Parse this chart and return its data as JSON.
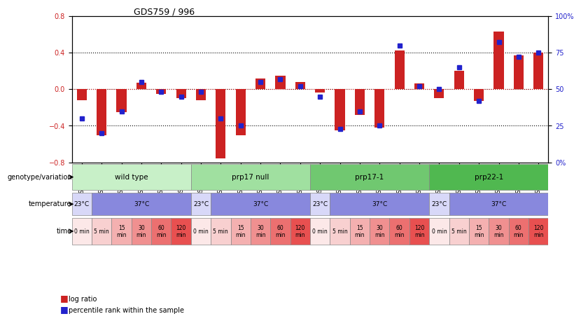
{
  "title": "GDS759 / 996",
  "samples": [
    "GSM30876",
    "GSM30877",
    "GSM30878",
    "GSM30879",
    "GSM30880",
    "GSM30881",
    "GSM30882",
    "GSM30883",
    "GSM30884",
    "GSM30885",
    "GSM30886",
    "GSM30887",
    "GSM30888",
    "GSM30889",
    "GSM30890",
    "GSM30891",
    "GSM30892",
    "GSM30893",
    "GSM30894",
    "GSM30895",
    "GSM30896",
    "GSM30897",
    "GSM30898",
    "GSM30899"
  ],
  "log_ratio": [
    -0.12,
    -0.5,
    -0.25,
    0.07,
    -0.05,
    -0.1,
    -0.12,
    -0.76,
    -0.5,
    0.12,
    0.15,
    0.08,
    -0.04,
    -0.45,
    -0.28,
    -0.42,
    0.42,
    0.06,
    -0.1,
    0.2,
    -0.13,
    0.63,
    0.37,
    0.4
  ],
  "percentile": [
    30,
    20,
    35,
    55,
    48,
    45,
    48,
    30,
    25,
    55,
    57,
    52,
    45,
    23,
    35,
    25,
    80,
    52,
    50,
    65,
    42,
    82,
    72,
    75
  ],
  "genotype_groups": [
    {
      "label": "wild type",
      "start": 0,
      "end": 6,
      "color": "#c8f0c8"
    },
    {
      "label": "prp17 null",
      "start": 6,
      "end": 12,
      "color": "#a0e0a0"
    },
    {
      "label": "prp17-1",
      "start": 12,
      "end": 18,
      "color": "#70c870"
    },
    {
      "label": "prp22-1",
      "start": 18,
      "end": 24,
      "color": "#50b850"
    }
  ],
  "temperature_groups": [
    {
      "label": "23°C",
      "start": 0,
      "end": 1,
      "color": "#d8d8f8"
    },
    {
      "label": "37°C",
      "start": 1,
      "end": 6,
      "color": "#8888dd"
    },
    {
      "label": "23°C",
      "start": 6,
      "end": 7,
      "color": "#d8d8f8"
    },
    {
      "label": "37°C",
      "start": 7,
      "end": 12,
      "color": "#8888dd"
    },
    {
      "label": "23°C",
      "start": 12,
      "end": 13,
      "color": "#d8d8f8"
    },
    {
      "label": "37°C",
      "start": 13,
      "end": 18,
      "color": "#8888dd"
    },
    {
      "label": "23°C",
      "start": 18,
      "end": 19,
      "color": "#d8d8f8"
    },
    {
      "label": "37°C",
      "start": 19,
      "end": 24,
      "color": "#8888dd"
    }
  ],
  "time_groups": [
    {
      "label": "0 min",
      "start": 0,
      "end": 1,
      "color": "#fce8e8"
    },
    {
      "label": "5 min",
      "start": 1,
      "end": 2,
      "color": "#f8d0d0"
    },
    {
      "label": "15\nmin",
      "start": 2,
      "end": 3,
      "color": "#f4b0b0"
    },
    {
      "label": "30\nmin",
      "start": 3,
      "end": 4,
      "color": "#f09090"
    },
    {
      "label": "60\nmin",
      "start": 4,
      "end": 5,
      "color": "#ec7070"
    },
    {
      "label": "120\nmin",
      "start": 5,
      "end": 6,
      "color": "#e85050"
    },
    {
      "label": "0 min",
      "start": 6,
      "end": 7,
      "color": "#fce8e8"
    },
    {
      "label": "5 min",
      "start": 7,
      "end": 8,
      "color": "#f8d0d0"
    },
    {
      "label": "15\nmin",
      "start": 8,
      "end": 9,
      "color": "#f4b0b0"
    },
    {
      "label": "30\nmin",
      "start": 9,
      "end": 10,
      "color": "#f09090"
    },
    {
      "label": "60\nmin",
      "start": 10,
      "end": 11,
      "color": "#ec7070"
    },
    {
      "label": "120\nmin",
      "start": 11,
      "end": 12,
      "color": "#e85050"
    },
    {
      "label": "0 min",
      "start": 12,
      "end": 13,
      "color": "#fce8e8"
    },
    {
      "label": "5 min",
      "start": 13,
      "end": 14,
      "color": "#f8d0d0"
    },
    {
      "label": "15\nmin",
      "start": 14,
      "end": 15,
      "color": "#f4b0b0"
    },
    {
      "label": "30\nmin",
      "start": 15,
      "end": 16,
      "color": "#f09090"
    },
    {
      "label": "60\nmin",
      "start": 16,
      "end": 17,
      "color": "#ec7070"
    },
    {
      "label": "120\nmin",
      "start": 17,
      "end": 18,
      "color": "#e85050"
    },
    {
      "label": "0 min",
      "start": 18,
      "end": 19,
      "color": "#fce8e8"
    },
    {
      "label": "5 min",
      "start": 19,
      "end": 20,
      "color": "#f8d0d0"
    },
    {
      "label": "15\nmin",
      "start": 20,
      "end": 21,
      "color": "#f4b0b0"
    },
    {
      "label": "30\nmin",
      "start": 21,
      "end": 22,
      "color": "#f09090"
    },
    {
      "label": "60\nmin",
      "start": 22,
      "end": 23,
      "color": "#ec7070"
    },
    {
      "label": "120\nmin",
      "start": 23,
      "end": 24,
      "color": "#e85050"
    }
  ],
  "ylim": [
    -0.8,
    0.8
  ],
  "yticks_left": [
    -0.8,
    -0.4,
    0.0,
    0.4,
    0.8
  ],
  "yticks_right": [
    0,
    25,
    50,
    75,
    100
  ],
  "right_axis_labels": [
    "0%",
    "25",
    "50",
    "75",
    "100%"
  ],
  "bar_color": "#cc2222",
  "percentile_color": "#2222cc",
  "background_color": "#ffffff",
  "plot_bg": "#ffffff",
  "grid_color": "#000000",
  "zero_line_color": "#cc2222"
}
